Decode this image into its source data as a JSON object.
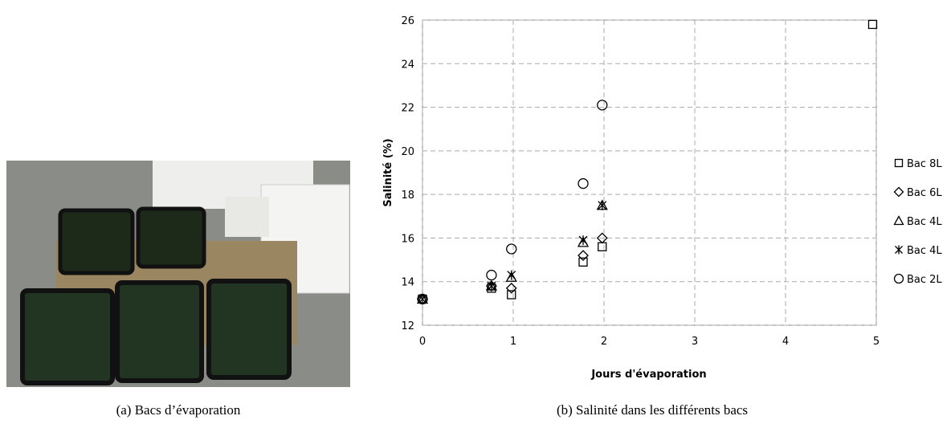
{
  "caption_a": "(a) Bacs d’évaporation",
  "caption_b": "(b) Salinité dans les différents bacs",
  "chart_data": {
    "type": "scatter",
    "x_label": "Jours d'évaporation",
    "y_label": "Salinité (%)",
    "xlim": [
      0,
      5
    ],
    "xticks": [
      0,
      1,
      2,
      3,
      4,
      5
    ],
    "ylim": [
      12,
      26
    ],
    "yticks": [
      12,
      14,
      16,
      18,
      20,
      22,
      24,
      26
    ],
    "grid": true,
    "legend": "right",
    "series": [
      {
        "name": "Bac 8L",
        "marker": "square",
        "color": "#000000",
        "x": [
          0,
          0.76,
          0.98,
          1.77,
          1.98,
          4.96
        ],
        "values": [
          13.2,
          13.7,
          13.4,
          14.9,
          15.6,
          25.8
        ]
      },
      {
        "name": "Bac 6L",
        "marker": "diamond",
        "color": "#000000",
        "x": [
          0,
          0.76,
          0.98,
          1.77,
          1.98
        ],
        "values": [
          13.2,
          13.8,
          13.7,
          15.2,
          16.0
        ]
      },
      {
        "name": "Bac 4L",
        "marker": "triangle",
        "color": "#000000",
        "x": [
          0,
          0.76,
          0.98,
          1.77,
          1.98
        ],
        "values": [
          13.2,
          13.8,
          14.2,
          15.8,
          17.5
        ]
      },
      {
        "name": "Bac 4L",
        "marker": "star",
        "color": "#000000",
        "x": [
          0,
          0.76,
          0.98,
          1.77,
          1.98
        ],
        "values": [
          13.2,
          13.8,
          14.3,
          15.9,
          17.5
        ]
      },
      {
        "name": "Bac 2L",
        "marker": "circle",
        "color": "#000000",
        "x": [
          0,
          0.76,
          0.98,
          1.77,
          1.98
        ],
        "values": [
          13.2,
          14.3,
          15.5,
          18.5,
          22.1
        ]
      }
    ]
  }
}
